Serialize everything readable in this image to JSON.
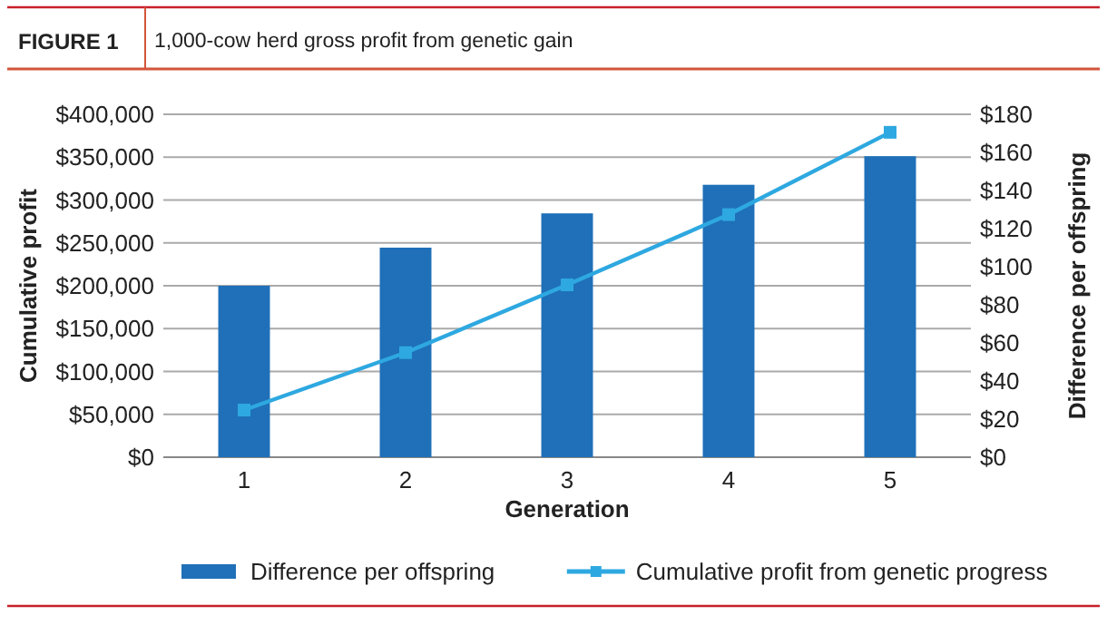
{
  "chart_data": {
    "type": "bar",
    "title": "1,000-cow herd gross profit from genetic gain",
    "subtitle": "FIGURE 1",
    "xlabel": "Generation",
    "ylabel": "Cumulative profit",
    "y2label": "Difference per offspring",
    "categories": [
      "1",
      "2",
      "3",
      "4",
      "5"
    ],
    "series": [
      {
        "name": "Difference per offspring",
        "axis": "y2",
        "color": "#1f70b8",
        "values": [
          90,
          110,
          128,
          143,
          158
        ]
      },
      {
        "name": "Cumulative profit from genetic progress",
        "type": "line",
        "axis": "y",
        "color": "#2ea8e0",
        "marker": "square",
        "values": [
          55000,
          122000,
          201000,
          283000,
          379000
        ]
      }
    ],
    "ylim": [
      0,
      400000
    ],
    "yticks": [
      {
        "value": 0,
        "label": "$0"
      },
      {
        "value": 50000,
        "label": "$50,000"
      },
      {
        "value": 100000,
        "label": "$100,000"
      },
      {
        "value": 150000,
        "label": "$150,000"
      },
      {
        "value": 200000,
        "label": "$200,000"
      },
      {
        "value": 250000,
        "label": "$250,000"
      },
      {
        "value": 300000,
        "label": "$300,000"
      },
      {
        "value": 350000,
        "label": "$350,000"
      },
      {
        "value": 400000,
        "label": "$400,000"
      }
    ],
    "y2lim": [
      0,
      180
    ],
    "y2ticks": [
      {
        "value": 0,
        "label": "$0"
      },
      {
        "value": 20,
        "label": "$20"
      },
      {
        "value": 40,
        "label": "$40"
      },
      {
        "value": 60,
        "label": "$60"
      },
      {
        "value": 80,
        "label": "$80"
      },
      {
        "value": 100,
        "label": "$100"
      },
      {
        "value": 120,
        "label": "$120"
      },
      {
        "value": 140,
        "label": "$140"
      },
      {
        "value": 160,
        "label": "$160"
      },
      {
        "value": 180,
        "label": "$180"
      }
    ],
    "grid": "y",
    "legend": "bottom"
  }
}
